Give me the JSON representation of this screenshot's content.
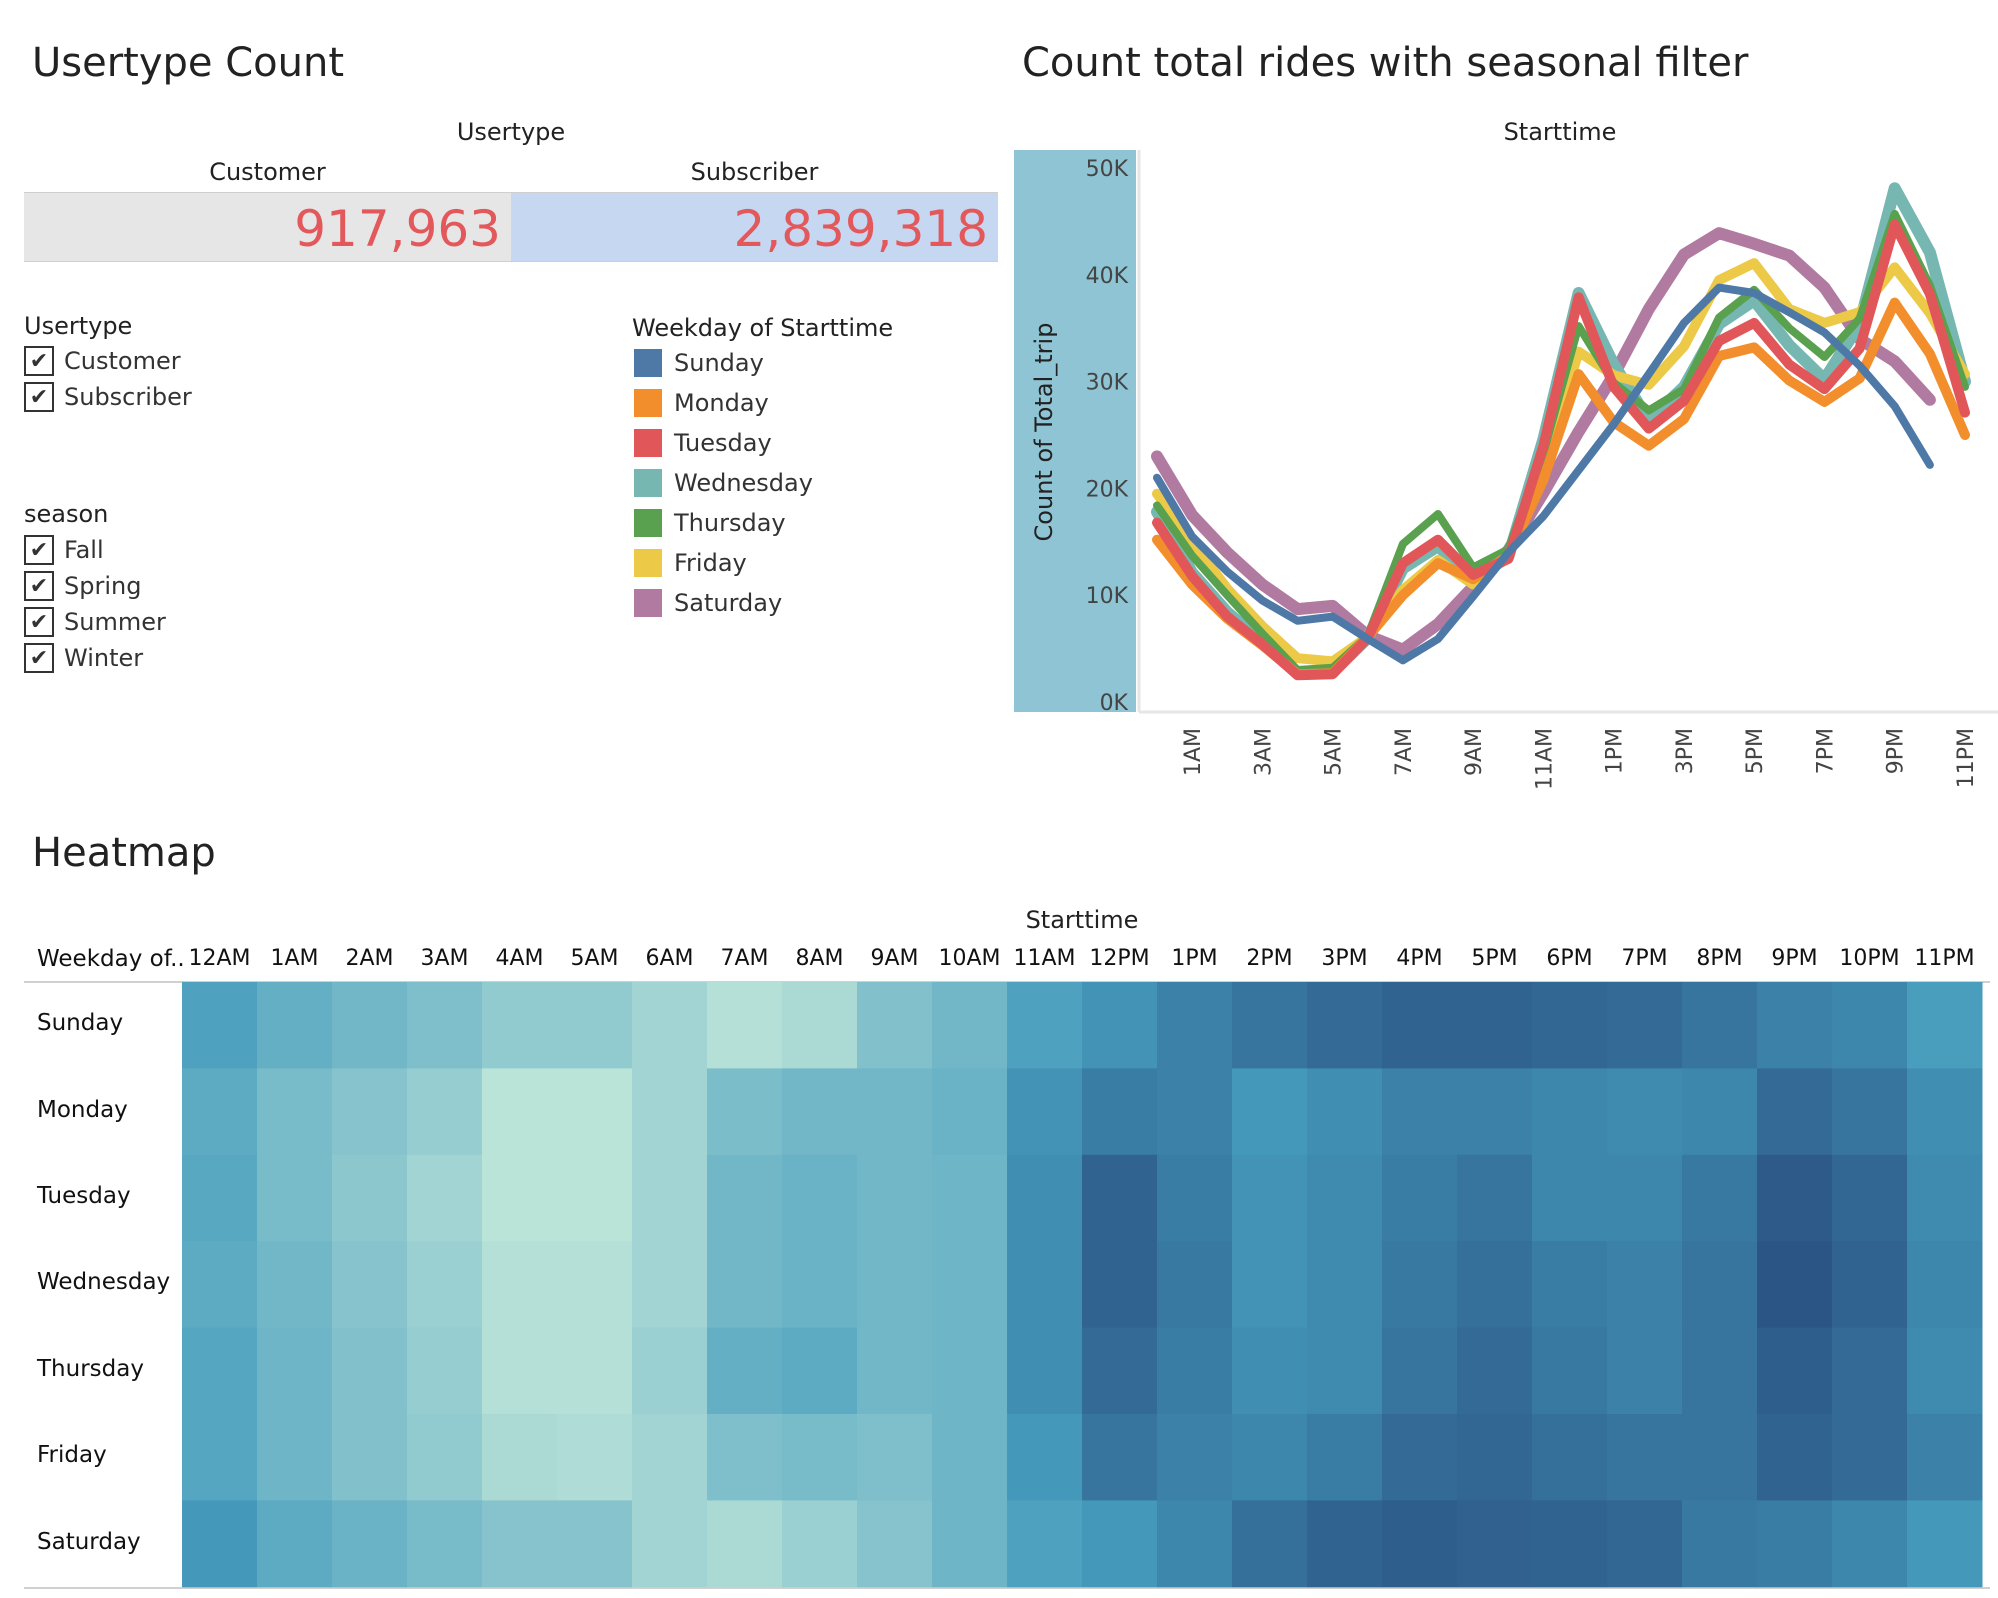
{
  "usertype_count": {
    "title": "Usertype Count",
    "header": "Usertype",
    "columns": [
      {
        "label": "Customer",
        "value": "917,963",
        "bg": "#e6e6e6"
      },
      {
        "label": "Subscriber",
        "value": "2,839,318",
        "bg": "#c5d7f1"
      }
    ]
  },
  "filters": {
    "usertype": {
      "title": "Usertype",
      "items": [
        "Customer",
        "Subscriber"
      ],
      "checked": [
        true,
        true
      ]
    },
    "season": {
      "title": "season",
      "items": [
        "Fall",
        "Spring",
        "Summer",
        "Winter"
      ],
      "checked": [
        true,
        true,
        true,
        true
      ]
    },
    "check_glyph": "✔"
  },
  "legend": {
    "title": "Weekday of Starttime",
    "items": [
      {
        "label": "Sunday",
        "color": "#4e79a7"
      },
      {
        "label": "Monday",
        "color": "#f28e2b"
      },
      {
        "label": "Tuesday",
        "color": "#e15759"
      },
      {
        "label": "Wednesday",
        "color": "#76b7b2"
      },
      {
        "label": "Thursday",
        "color": "#59a14f"
      },
      {
        "label": "Friday",
        "color": "#edc948"
      },
      {
        "label": "Saturday",
        "color": "#b07aa1"
      }
    ]
  },
  "line_chart": {
    "title": "Count total rides with seasonal filter"
  },
  "heatmap": {
    "title": "Heatmap"
  },
  "chart_data": [
    {
      "type": "line",
      "title": "Count total rides with seasonal filter",
      "xlabel": "Starttime",
      "ylabel": "Count of Total_trip",
      "ylim": [
        0,
        50000
      ],
      "yticks": [
        0,
        10000,
        20000,
        30000,
        40000,
        50000
      ],
      "ytick_labels": [
        "0K",
        "10K",
        "20K",
        "30K",
        "40K",
        "50K"
      ],
      "x": [
        "12AM",
        "1AM",
        "2AM",
        "3AM",
        "4AM",
        "5AM",
        "6AM",
        "7AM",
        "8AM",
        "9AM",
        "10AM",
        "11AM",
        "12PM",
        "1PM",
        "2PM",
        "3PM",
        "4PM",
        "5PM",
        "6PM",
        "7PM",
        "8PM",
        "9PM",
        "10PM",
        "11PM"
      ],
      "xtick_labels": [
        "1AM",
        "3AM",
        "5AM",
        "7AM",
        "9AM",
        "11AM",
        "1PM",
        "3PM",
        "5PM",
        "7PM",
        "9PM",
        "11PM"
      ],
      "series": [
        {
          "name": "Sunday",
          "color": "#4e79a7",
          "values": [
            21000,
            15500,
            12200,
            9500,
            7600,
            8000,
            5900,
            3900,
            5900,
            9900,
            14000,
            17400,
            21700,
            26000,
            30700,
            35500,
            38800,
            38300,
            36500,
            34600,
            31500,
            27700,
            22200,
            null
          ]
        },
        {
          "name": "Monday",
          "color": "#f28e2b",
          "values": [
            15200,
            11000,
            7800,
            5300,
            2600,
            2700,
            6100,
            10000,
            13000,
            11500,
            13700,
            20800,
            30700,
            26200,
            24000,
            26500,
            32400,
            33200,
            30100,
            28100,
            30300,
            37400,
            32600,
            25000
          ]
        },
        {
          "name": "Tuesday",
          "color": "#e15759",
          "values": [
            16800,
            11800,
            8000,
            5400,
            2500,
            2600,
            6000,
            13000,
            15200,
            11900,
            13400,
            24000,
            37900,
            29500,
            25600,
            28200,
            33800,
            35500,
            31600,
            29300,
            33100,
            44700,
            38200,
            27100
          ]
        },
        {
          "name": "Wednesday",
          "color": "#76b7b2",
          "values": [
            17800,
            12100,
            8400,
            5600,
            2700,
            2800,
            6000,
            12500,
            14600,
            11500,
            13600,
            24600,
            38300,
            31600,
            26400,
            29500,
            35400,
            37600,
            33400,
            30200,
            35400,
            48100,
            42100,
            30000
          ]
        },
        {
          "name": "Thursday",
          "color": "#59a14f",
          "values": [
            18400,
            13700,
            10000,
            6400,
            3000,
            3200,
            6200,
            14800,
            17600,
            12600,
            14300,
            23300,
            35200,
            29900,
            27300,
            29300,
            36000,
            38600,
            35000,
            32300,
            35900,
            45700,
            39000,
            29500
          ]
        },
        {
          "name": "Friday",
          "color": "#edc948",
          "values": [
            19500,
            15000,
            10600,
            7100,
            4100,
            3800,
            6100,
            10500,
            13300,
            11000,
            13800,
            21600,
            32800,
            30600,
            29700,
            33300,
            39500,
            41100,
            36800,
            35500,
            36500,
            40700,
            36400,
            30700
          ]
        },
        {
          "name": "Saturday",
          "color": "#b07aa1",
          "values": [
            23000,
            17500,
            14000,
            11000,
            8700,
            9000,
            6200,
            4900,
            7300,
            10800,
            14200,
            19600,
            25300,
            30600,
            36800,
            41900,
            43900,
            42900,
            41800,
            38800,
            34000,
            31900,
            28300,
            null
          ]
        }
      ]
    },
    {
      "type": "heatmap",
      "title": "Heatmap",
      "xlabel": "Starttime",
      "row_header": "Weekday of..",
      "columns": [
        "12AM",
        "1AM",
        "2AM",
        "3AM",
        "4AM",
        "5AM",
        "6AM",
        "7AM",
        "8AM",
        "9AM",
        "10AM",
        "11AM",
        "12PM",
        "1PM",
        "2PM",
        "3PM",
        "4PM",
        "5PM",
        "6PM",
        "7PM",
        "8PM",
        "9PM",
        "10PM",
        "11PM"
      ],
      "rows": [
        "Sunday",
        "Monday",
        "Tuesday",
        "Wednesday",
        "Thursday",
        "Friday",
        "Saturday"
      ],
      "color_low": "#bfe6da",
      "color_high": "#2b5585",
      "values": [
        [
          0.55,
          0.45,
          0.38,
          0.32,
          0.22,
          0.22,
          0.15,
          0.05,
          0.1,
          0.3,
          0.38,
          0.55,
          0.65,
          0.75,
          0.82,
          0.88,
          0.92,
          0.92,
          0.9,
          0.88,
          0.82,
          0.75,
          0.72,
          0.58
        ],
        [
          0.48,
          0.35,
          0.28,
          0.2,
          0.02,
          0.02,
          0.15,
          0.33,
          0.38,
          0.38,
          0.42,
          0.65,
          0.78,
          0.75,
          0.62,
          0.68,
          0.75,
          0.75,
          0.72,
          0.7,
          0.72,
          0.88,
          0.82,
          0.68
        ],
        [
          0.5,
          0.35,
          0.25,
          0.15,
          0.02,
          0.02,
          0.15,
          0.38,
          0.42,
          0.38,
          0.4,
          0.68,
          0.92,
          0.78,
          0.65,
          0.7,
          0.78,
          0.82,
          0.72,
          0.72,
          0.8,
          0.97,
          0.9,
          0.7
        ],
        [
          0.48,
          0.38,
          0.28,
          0.18,
          0.05,
          0.05,
          0.15,
          0.38,
          0.42,
          0.38,
          0.4,
          0.68,
          0.92,
          0.8,
          0.65,
          0.7,
          0.8,
          0.85,
          0.78,
          0.75,
          0.82,
          1.0,
          0.92,
          0.72
        ],
        [
          0.52,
          0.4,
          0.3,
          0.2,
          0.05,
          0.05,
          0.18,
          0.45,
          0.48,
          0.38,
          0.4,
          0.68,
          0.88,
          0.78,
          0.68,
          0.7,
          0.82,
          0.88,
          0.8,
          0.75,
          0.82,
          0.95,
          0.88,
          0.7
        ],
        [
          0.52,
          0.4,
          0.3,
          0.22,
          0.1,
          0.08,
          0.15,
          0.32,
          0.35,
          0.32,
          0.4,
          0.62,
          0.82,
          0.75,
          0.72,
          0.78,
          0.88,
          0.9,
          0.85,
          0.82,
          0.82,
          0.92,
          0.88,
          0.75
        ],
        [
          0.62,
          0.48,
          0.42,
          0.35,
          0.28,
          0.28,
          0.15,
          0.1,
          0.18,
          0.28,
          0.4,
          0.55,
          0.62,
          0.72,
          0.85,
          0.92,
          0.95,
          0.93,
          0.92,
          0.9,
          0.8,
          0.78,
          0.72,
          0.62
        ]
      ]
    }
  ]
}
